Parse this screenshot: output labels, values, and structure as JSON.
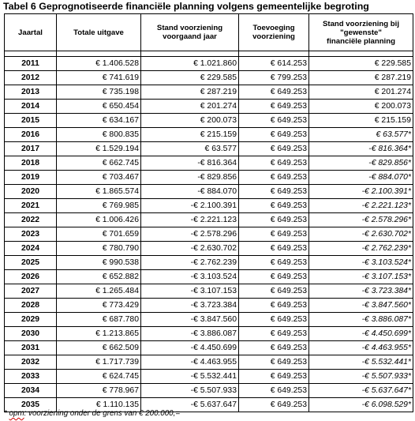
{
  "title": "Tabel 6 Geprognotiseerde  financiële  planning  volgens  gemeentelijke  begroting",
  "headers": {
    "jaartal": "Jaartal",
    "totale": "Totale uitgave",
    "stand_line1": "Stand voorziening",
    "stand_line2": "voorgaand jaar",
    "toev_line1": "Toevoeging",
    "toev_line2": "voorziening",
    "gew_line1": "Stand voorziening bij",
    "gew_line2": "\"gewenste\"",
    "gew_line3": "financiële planning"
  },
  "rows": [
    {
      "year": "2011",
      "totale": "€ 1.406.528",
      "stand": "€ 1.021.860",
      "toev": "€ 614.253",
      "gew": "€ 229.585",
      "gew_italic": false
    },
    {
      "year": "2012",
      "totale": "€ 741.619",
      "stand": "€ 229.585",
      "toev": "€ 799.253",
      "gew": "€ 287.219",
      "gew_italic": false
    },
    {
      "year": "2013",
      "totale": "€ 735.198",
      "stand": "€ 287.219",
      "toev": "€ 649.253",
      "gew": "€ 201.274",
      "gew_italic": false
    },
    {
      "year": "2014",
      "totale": "€ 650.454",
      "stand": "€ 201.274",
      "toev": "€ 649.253",
      "gew": "€ 200.073",
      "gew_italic": false
    },
    {
      "year": "2015",
      "totale": "€ 634.167",
      "stand": "€ 200.073",
      "toev": "€ 649.253",
      "gew": "€ 215.159",
      "gew_italic": false
    },
    {
      "year": "2016",
      "totale": "€ 800.835",
      "stand": "€ 215.159",
      "toev": "€ 649.253",
      "gew": "€ 63.577*",
      "gew_italic": true
    },
    {
      "year": "2017",
      "totale": "€ 1.529.194",
      "stand": "€ 63.577",
      "toev": "€ 649.253",
      "gew": "-€ 816.364*",
      "gew_italic": true
    },
    {
      "year": "2018",
      "totale": "€ 662.745",
      "stand": "-€ 816.364",
      "toev": "€ 649.253",
      "gew": "-€ 829.856*",
      "gew_italic": true
    },
    {
      "year": "2019",
      "totale": "€ 703.467",
      "stand": "-€ 829.856",
      "toev": "€ 649.253",
      "gew": "-€ 884.070*",
      "gew_italic": true
    },
    {
      "year": "2020",
      "totale": "€ 1.865.574",
      "stand": "-€ 884.070",
      "toev": "€ 649.253",
      "gew": "-€ 2.100.391*",
      "gew_italic": true
    },
    {
      "year": "2021",
      "totale": "€ 769.985",
      "stand": "-€ 2.100.391",
      "toev": "€ 649.253",
      "gew": "-€ 2.221.123*",
      "gew_italic": true
    },
    {
      "year": "2022",
      "totale": "€ 1.006.426",
      "stand": "-€ 2.221.123",
      "toev": "€ 649.253",
      "gew": "-€ 2.578.296*",
      "gew_italic": true
    },
    {
      "year": "2023",
      "totale": "€ 701.659",
      "stand": "-€ 2.578.296",
      "toev": "€ 649.253",
      "gew": "-€ 2.630.702*",
      "gew_italic": true
    },
    {
      "year": "2024",
      "totale": "€ 780.790",
      "stand": "-€ 2.630.702",
      "toev": "€ 649.253",
      "gew": "-€ 2.762.239*",
      "gew_italic": true
    },
    {
      "year": "2025",
      "totale": "€ 990.538",
      "stand": "-€ 2.762.239",
      "toev": "€ 649.253",
      "gew": "-€ 3.103.524*",
      "gew_italic": true
    },
    {
      "year": "2026",
      "totale": "€ 652.882",
      "stand": "-€ 3.103.524",
      "toev": "€ 649.253",
      "gew": "-€ 3.107.153*",
      "gew_italic": true
    },
    {
      "year": "2027",
      "totale": "€ 1.265.484",
      "stand": "-€ 3.107.153",
      "toev": "€ 649.253",
      "gew": "-€ 3.723.384*",
      "gew_italic": true
    },
    {
      "year": "2028",
      "totale": "€ 773.429",
      "stand": "-€ 3.723.384",
      "toev": "€ 649.253",
      "gew": "-€ 3.847.560*",
      "gew_italic": true
    },
    {
      "year": "2029",
      "totale": "€ 687.780",
      "stand": "-€ 3.847.560",
      "toev": "€ 649.253",
      "gew": "-€ 3.886.087*",
      "gew_italic": true
    },
    {
      "year": "2030",
      "totale": "€ 1.213.865",
      "stand": "-€ 3.886.087",
      "toev": "€ 649.253",
      "gew": "-€ 4.450.699*",
      "gew_italic": true
    },
    {
      "year": "2031",
      "totale": "€ 662.509",
      "stand": "-€ 4.450.699",
      "toev": "€ 649.253",
      "gew": "-€ 4.463.955*",
      "gew_italic": true
    },
    {
      "year": "2032",
      "totale": "€ 1.717.739",
      "stand": "-€ 4.463.955",
      "toev": "€ 649.253",
      "gew": "-€ 5.532.441*",
      "gew_italic": true
    },
    {
      "year": "2033",
      "totale": "€ 624.745",
      "stand": "-€ 5.532.441",
      "toev": "€ 649.253",
      "gew": "-€ 5.507.933*",
      "gew_italic": true
    },
    {
      "year": "2034",
      "totale": "€ 778.967",
      "stand": "-€ 5.507.933",
      "toev": "€ 649.253",
      "gew": "-€ 5.637.647*",
      "gew_italic": true
    },
    {
      "year": "2035",
      "totale": "€ 1.110.135",
      "stand": "-€ 5.637.647",
      "toev": "€ 649.253",
      "gew": "-€ 6.098.529*",
      "gew_italic": true
    }
  ],
  "footnote": {
    "star": "* ",
    "opm": "opm",
    "rest": ": voorziening onder de grens van € 200.000,="
  }
}
